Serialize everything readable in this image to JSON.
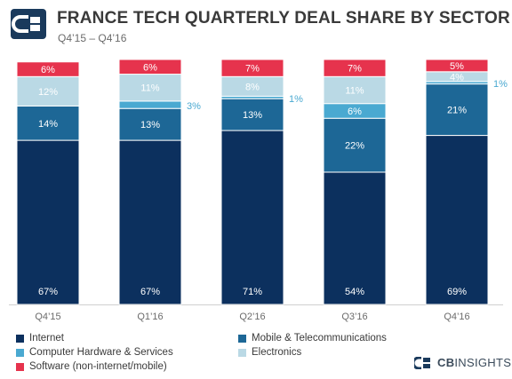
{
  "header": {
    "title": "FRANCE TECH QUARTERLY DEAL SHARE BY SECTOR",
    "subtitle": "Q4’15 – Q4’16"
  },
  "brand": {
    "bold": "CB",
    "rest": "INSIGHTS"
  },
  "colors": {
    "internet": "#0c305e",
    "mobile": "#1d6796",
    "hardware": "#4aa9d1",
    "electronics": "#bad9e5",
    "software": "#e6334d",
    "logo": "#1a3a5c",
    "outside_label": "#4aa9d1"
  },
  "chart_data": {
    "type": "bar",
    "stacked": true,
    "normalized_percent": true,
    "categories": [
      "Q4’15",
      "Q1’16",
      "Q2’16",
      "Q3’16",
      "Q4’16"
    ],
    "series": [
      {
        "name": "Internet",
        "key": "internet",
        "values": [
          67,
          67,
          71,
          54,
          69
        ],
        "labels": [
          "67%",
          "67%",
          "71%",
          "54%",
          "69%"
        ]
      },
      {
        "name": "Mobile & Telecommunications",
        "key": "mobile",
        "values": [
          14,
          13,
          13,
          22,
          21
        ],
        "labels": [
          "14%",
          "13%",
          "13%",
          "22%",
          "21%"
        ]
      },
      {
        "name": "Computer Hardware & Services",
        "key": "hardware",
        "values": [
          0,
          3,
          1,
          6,
          1
        ],
        "labels": [
          "",
          "3%",
          "1%",
          "6%",
          "1%"
        ]
      },
      {
        "name": "Electronics",
        "key": "electronics",
        "values": [
          12,
          11,
          8,
          11,
          4
        ],
        "labels": [
          "12%",
          "11%",
          "8%",
          "11%",
          "4%"
        ]
      },
      {
        "name": "Software (non-internet/mobile)",
        "key": "software",
        "values": [
          6,
          6,
          7,
          7,
          5
        ],
        "labels": [
          "6%",
          "6%",
          "7%",
          "7%",
          "5%"
        ]
      }
    ],
    "ylim": [
      0,
      100
    ],
    "legend_position": "bottom",
    "grid": false
  }
}
